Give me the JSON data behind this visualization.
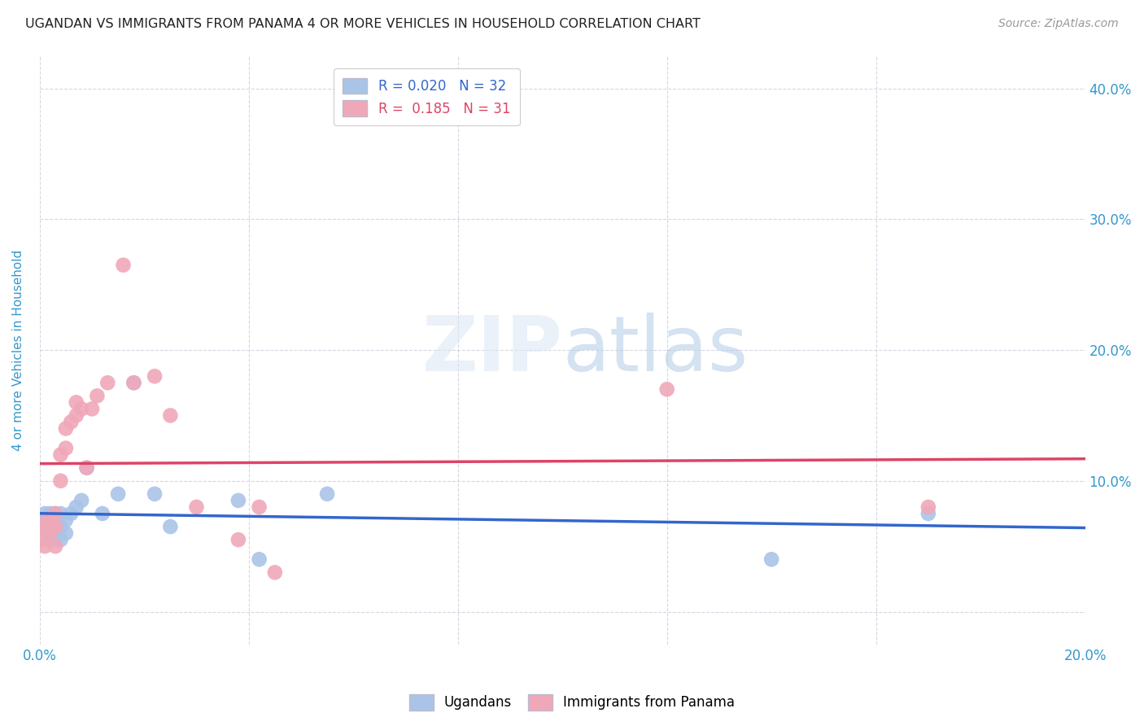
{
  "title": "UGANDAN VS IMMIGRANTS FROM PANAMA 4 OR MORE VEHICLES IN HOUSEHOLD CORRELATION CHART",
  "source": "Source: ZipAtlas.com",
  "ylabel": "4 or more Vehicles in Household",
  "xlim": [
    0.0,
    0.2
  ],
  "ylim": [
    -0.025,
    0.425
  ],
  "legend_r_blue": "0.020",
  "legend_n_blue": "32",
  "legend_r_pink": "0.185",
  "legend_n_pink": "31",
  "ugandan_x": [
    0.0005,
    0.001,
    0.001,
    0.0015,
    0.0015,
    0.002,
    0.002,
    0.002,
    0.002,
    0.003,
    0.003,
    0.003,
    0.003,
    0.004,
    0.004,
    0.004,
    0.005,
    0.005,
    0.006,
    0.007,
    0.008,
    0.009,
    0.012,
    0.015,
    0.018,
    0.022,
    0.025,
    0.038,
    0.042,
    0.055,
    0.14,
    0.17
  ],
  "ugandan_y": [
    0.065,
    0.075,
    0.07,
    0.06,
    0.07,
    0.055,
    0.065,
    0.07,
    0.075,
    0.055,
    0.065,
    0.07,
    0.075,
    0.055,
    0.065,
    0.075,
    0.06,
    0.07,
    0.075,
    0.08,
    0.085,
    0.11,
    0.075,
    0.09,
    0.175,
    0.09,
    0.065,
    0.085,
    0.04,
    0.09,
    0.04,
    0.075
  ],
  "panama_x": [
    0.0005,
    0.001,
    0.001,
    0.0015,
    0.002,
    0.002,
    0.003,
    0.003,
    0.003,
    0.004,
    0.004,
    0.005,
    0.005,
    0.006,
    0.007,
    0.007,
    0.008,
    0.009,
    0.01,
    0.011,
    0.013,
    0.016,
    0.018,
    0.022,
    0.025,
    0.03,
    0.038,
    0.042,
    0.045,
    0.12,
    0.17
  ],
  "panama_y": [
    0.055,
    0.05,
    0.065,
    0.07,
    0.06,
    0.065,
    0.05,
    0.065,
    0.075,
    0.1,
    0.12,
    0.125,
    0.14,
    0.145,
    0.15,
    0.16,
    0.155,
    0.11,
    0.155,
    0.165,
    0.175,
    0.265,
    0.175,
    0.18,
    0.15,
    0.08,
    0.055,
    0.08,
    0.03,
    0.17,
    0.08
  ],
  "blue_color": "#aac4e8",
  "pink_color": "#f0a8b8",
  "blue_line_color": "#3366cc",
  "pink_line_color": "#dd4466",
  "bg_color": "#ffffff",
  "grid_color": "#ccccdd",
  "title_color": "#222222",
  "axis_label_color": "#3399cc",
  "tick_color": "#3399cc"
}
